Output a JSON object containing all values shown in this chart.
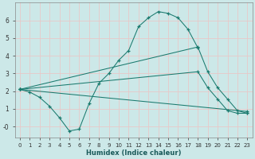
{
  "xlabel": "Humidex (Indice chaleur)",
  "bg_color": "#cce8e8",
  "grid_color": "#e8c8c8",
  "line_color": "#1a7a6e",
  "xlim": [
    -0.5,
    23.5
  ],
  "ylim": [
    -0.6,
    7.0
  ],
  "yticks": [
    0,
    1,
    2,
    3,
    4,
    5,
    6
  ],
  "ytick_labels": [
    "-0",
    "1",
    "2",
    "3",
    "4",
    "5",
    "6"
  ],
  "xticks": [
    0,
    1,
    2,
    3,
    4,
    5,
    6,
    7,
    8,
    9,
    10,
    11,
    12,
    13,
    14,
    15,
    16,
    17,
    18,
    19,
    20,
    21,
    22,
    23
  ],
  "line1_x": [
    0,
    1,
    2,
    3,
    4,
    5,
    6,
    7,
    8,
    9,
    10,
    11,
    12,
    13,
    14,
    15,
    16,
    17,
    18
  ],
  "line1_y": [
    2.1,
    1.95,
    1.65,
    1.15,
    0.5,
    -0.25,
    -0.15,
    1.3,
    2.45,
    3.0,
    3.75,
    4.3,
    5.65,
    6.15,
    6.5,
    6.4,
    6.15,
    5.5,
    4.45
  ],
  "line2_x": [
    0,
    18,
    19,
    20,
    21,
    22,
    23
  ],
  "line2_y": [
    2.1,
    4.5,
    3.1,
    2.2,
    1.55,
    0.9,
    0.75
  ],
  "line3_x": [
    0,
    18,
    19,
    20,
    21,
    22,
    23
  ],
  "line3_y": [
    2.1,
    3.1,
    2.2,
    1.55,
    0.9,
    0.75,
    0.75
  ],
  "line4_x": [
    0,
    23
  ],
  "line4_y": [
    2.1,
    0.85
  ]
}
